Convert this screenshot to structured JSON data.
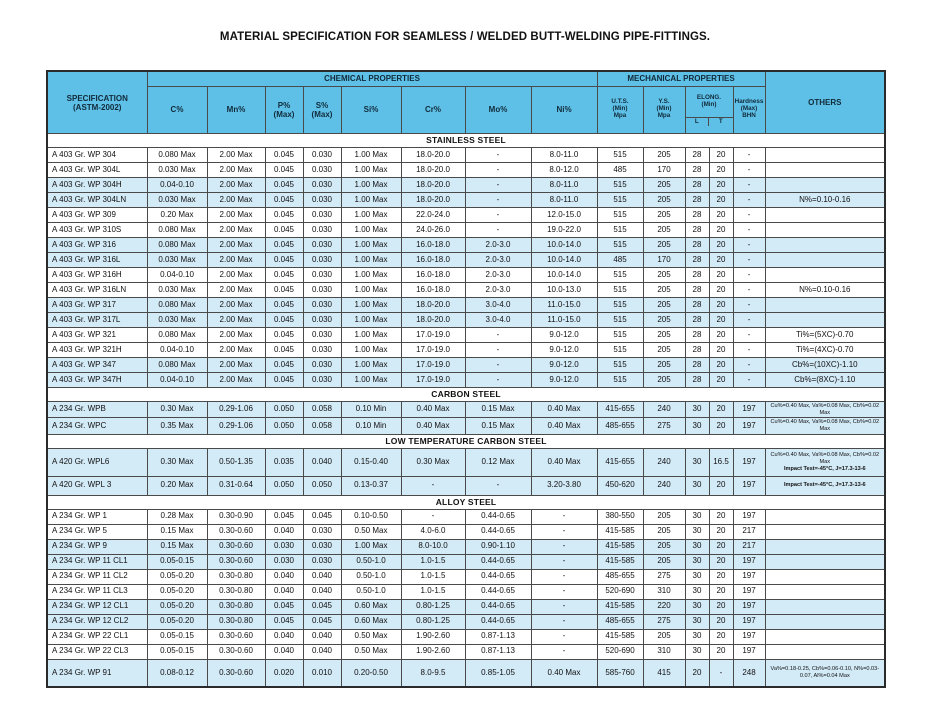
{
  "title": "MATERIAL SPECIFICATION FOR SEAMLESS / WELDED BUTT-WELDING PIPE-FITTINGS.",
  "colors": {
    "header_blue": "#5fc0e7",
    "row_blue": "#d3eaf7",
    "border": "#4a4a4a"
  },
  "header": {
    "spec": "SPECIFICATION\n(ASTM-2002)",
    "chemical": "CHEMICAL PROPERTIES",
    "mechanical": "MECHANICAL PROPERTIES",
    "others": "OTHERS",
    "chem_cols": [
      "C%",
      "Mn%",
      "P%\n(Max)",
      "S%\n(Max)",
      "Si%",
      "Cr%",
      "Mo%",
      "Ni%"
    ],
    "mech_cols": [
      "U.T.S.\n(Min)\nMpa",
      "Y.S.\n(Min)\nMpa",
      "ELONG.\n(Min)",
      "Hardness\n(Max)\nBHN"
    ],
    "elong_sub": [
      "L",
      "T"
    ]
  },
  "sections": [
    {
      "name": "STAINLESS STEEL",
      "rows": [
        {
          "shade": false,
          "cells": [
            "A 403 Gr. WP 304",
            "0.080 Max",
            "2.00 Max",
            "0.045",
            "0.030",
            "1.00 Max",
            "18.0-20.0",
            "-",
            "8.0-11.0",
            "515",
            "205",
            "28",
            "20",
            "-",
            ""
          ]
        },
        {
          "shade": false,
          "cells": [
            "A 403 Gr. WP 304L",
            "0.030 Max",
            "2.00 Max",
            "0.045",
            "0.030",
            "1.00 Max",
            "18.0-20.0",
            "-",
            "8.0-12.0",
            "485",
            "170",
            "28",
            "20",
            "-",
            ""
          ]
        },
        {
          "shade": true,
          "cells": [
            "A 403 Gr. WP 304H",
            "0.04-0.10",
            "2.00 Max",
            "0.045",
            "0.030",
            "1.00 Max",
            "18.0-20.0",
            "-",
            "8.0-11.0",
            "515",
            "205",
            "28",
            "20",
            "-",
            ""
          ]
        },
        {
          "shade": true,
          "cells": [
            "A 403 Gr. WP 304LN",
            "0.030 Max",
            "2.00 Max",
            "0.045",
            "0.030",
            "1.00 Max",
            "18.0-20.0",
            "-",
            "8.0-11.0",
            "515",
            "205",
            "28",
            "20",
            "-",
            "N%=0.10-0.16"
          ]
        },
        {
          "shade": false,
          "cells": [
            "A 403 Gr. WP 309",
            "0.20 Max",
            "2.00 Max",
            "0.045",
            "0.030",
            "1.00 Max",
            "22.0-24.0",
            "-",
            "12.0-15.0",
            "515",
            "205",
            "28",
            "20",
            "-",
            ""
          ]
        },
        {
          "shade": false,
          "cells": [
            "A 403 Gr. WP 310S",
            "0.080 Max",
            "2.00 Max",
            "0.045",
            "0.030",
            "1.00 Max",
            "24.0-26.0",
            "-",
            "19.0-22.0",
            "515",
            "205",
            "28",
            "20",
            "-",
            ""
          ]
        },
        {
          "shade": true,
          "cells": [
            "A 403 Gr. WP 316",
            "0.080 Max",
            "2.00 Max",
            "0.045",
            "0.030",
            "1.00 Max",
            "16.0-18.0",
            "2.0-3.0",
            "10.0-14.0",
            "515",
            "205",
            "28",
            "20",
            "-",
            ""
          ]
        },
        {
          "shade": true,
          "cells": [
            "A 403 Gr. WP 316L",
            "0.030 Max",
            "2.00 Max",
            "0.045",
            "0.030",
            "1.00 Max",
            "16.0-18.0",
            "2.0-3.0",
            "10.0-14.0",
            "485",
            "170",
            "28",
            "20",
            "-",
            ""
          ]
        },
        {
          "shade": false,
          "cells": [
            "A 403 Gr. WP 316H",
            "0.04-0.10",
            "2.00 Max",
            "0.045",
            "0.030",
            "1.00 Max",
            "16.0-18.0",
            "2.0-3.0",
            "10.0-14.0",
            "515",
            "205",
            "28",
            "20",
            "-",
            ""
          ]
        },
        {
          "shade": false,
          "cells": [
            "A 403 Gr. WP 316LN",
            "0.030 Max",
            "2.00 Max",
            "0.045",
            "0.030",
            "1.00 Max",
            "16.0-18.0",
            "2.0-3.0",
            "10.0-13.0",
            "515",
            "205",
            "28",
            "20",
            "-",
            "N%=0.10-0.16"
          ]
        },
        {
          "shade": true,
          "cells": [
            "A 403 Gr. WP 317",
            "0.080 Max",
            "2.00 Max",
            "0.045",
            "0.030",
            "1.00 Max",
            "18.0-20.0",
            "3.0-4.0",
            "11.0-15.0",
            "515",
            "205",
            "28",
            "20",
            "-",
            ""
          ]
        },
        {
          "shade": true,
          "cells": [
            "A 403 Gr. WP 317L",
            "0.030 Max",
            "2.00 Max",
            "0.045",
            "0.030",
            "1.00 Max",
            "18.0-20.0",
            "3.0-4.0",
            "11.0-15.0",
            "515",
            "205",
            "28",
            "20",
            "-",
            ""
          ]
        },
        {
          "shade": false,
          "cells": [
            "A 403 Gr. WP 321",
            "0.080 Max",
            "2.00 Max",
            "0.045",
            "0.030",
            "1.00 Max",
            "17.0-19.0",
            "-",
            "9.0-12.0",
            "515",
            "205",
            "28",
            "20",
            "-",
            "Ti%=(5XC)-0.70"
          ]
        },
        {
          "shade": false,
          "cells": [
            "A 403 Gr. WP 321H",
            "0.04-0.10",
            "2.00 Max",
            "0.045",
            "0.030",
            "1.00 Max",
            "17.0-19.0",
            "-",
            "9.0-12.0",
            "515",
            "205",
            "28",
            "20",
            "-",
            "Ti%=(4XC)-0.70"
          ]
        },
        {
          "shade": true,
          "cells": [
            "A 403 Gr. WP 347",
            "0.080 Max",
            "2.00 Max",
            "0.045",
            "0.030",
            "1.00 Max",
            "17.0-19.0",
            "-",
            "9.0-12.0",
            "515",
            "205",
            "28",
            "20",
            "-",
            "Cb%=(10XC)-1.10"
          ]
        },
        {
          "shade": true,
          "cells": [
            "A 403 Gr. WP 347H",
            "0.04-0.10",
            "2.00 Max",
            "0.045",
            "0.030",
            "1.00 Max",
            "17.0-19.0",
            "-",
            "9.0-12.0",
            "515",
            "205",
            "28",
            "20",
            "-",
            "Cb%=(8XC)-1.10"
          ]
        }
      ]
    },
    {
      "name": "CARBON STEEL",
      "rows": [
        {
          "shade": true,
          "cells": [
            "A 234 Gr. WPB",
            "0.30 Max",
            "0.29-1.06",
            "0.050",
            "0.058",
            "0.10 Min",
            "0.40 Max",
            "0.15 Max",
            "0.40 Max",
            "415-655",
            "240",
            "30",
            "20",
            "197",
            "Cu%=0.40 Max, Va%=0.08 Max, Cb%=0.02 Max"
          ]
        },
        {
          "shade": true,
          "cells": [
            "A 234 Gr. WPC",
            "0.35 Max",
            "0.29-1.06",
            "0.050",
            "0.058",
            "0.10 Min",
            "0.40 Max",
            "0.15 Max",
            "0.40 Max",
            "485-655",
            "275",
            "30",
            "20",
            "197",
            "Cu%=0.40 Max, Va%=0.08 Max, Cb%=0.02 Max"
          ]
        }
      ]
    },
    {
      "name": "LOW TEMPERATURE CARBON STEEL",
      "rows": [
        {
          "shade": true,
          "tall": true,
          "cells": [
            "A 420 Gr. WPL6",
            "0.30 Max",
            "0.50-1.35",
            "0.035",
            "0.040",
            "0.15-0.40",
            "0.30 Max",
            "0.12 Max",
            "0.40 Max",
            "415-655",
            "240",
            "30",
            "16.5",
            "197",
            "Cu%=0.40 Max, Va%=0.08 Max, Cb%=0.02 Max\nImpact Test=-45°C, J=17.3-13-6"
          ]
        },
        {
          "shade": true,
          "semiTall": true,
          "cells": [
            "A 420 Gr. WPL 3",
            "0.20 Max",
            "0.31-0.64",
            "0.050",
            "0.050",
            "0.13-0.37",
            "-",
            "-",
            "3.20-3.80",
            "450-620",
            "240",
            "30",
            "20",
            "197",
            "Impact Test=-45°C, J=17.3-13-6"
          ]
        }
      ]
    },
    {
      "name": "ALLOY STEEL",
      "rows": [
        {
          "shade": false,
          "cells": [
            "A 234 Gr. WP 1",
            "0.28 Max",
            "0.30-0.90",
            "0.045",
            "0.045",
            "0.10-0.50",
            "-",
            "0.44-0.65",
            "-",
            "380-550",
            "205",
            "30",
            "20",
            "197",
            ""
          ]
        },
        {
          "shade": false,
          "cells": [
            "A 234 Gr. WP 5",
            "0.15 Max",
            "0.30-0.60",
            "0.040",
            "0.030",
            "0.50 Max",
            "4.0-6.0",
            "0.44-0.65",
            "-",
            "415-585",
            "205",
            "30",
            "20",
            "217",
            ""
          ]
        },
        {
          "shade": true,
          "cells": [
            "A 234 Gr. WP 9",
            "0.15 Max",
            "0.30-0.60",
            "0.030",
            "0.030",
            "1.00 Max",
            "8.0-10.0",
            "0.90-1.10",
            "-",
            "415-585",
            "205",
            "30",
            "20",
            "217",
            ""
          ]
        },
        {
          "shade": true,
          "cells": [
            "A 234 Gr. WP 11 CL1",
            "0.05-0.15",
            "0.30-0.60",
            "0.030",
            "0.030",
            "0.50-1.0",
            "1.0-1.5",
            "0.44-0.65",
            "-",
            "415-585",
            "205",
            "30",
            "20",
            "197",
            ""
          ]
        },
        {
          "shade": false,
          "cells": [
            "A 234 Gr. WP 11 CL2",
            "0.05-0.20",
            "0.30-0.80",
            "0.040",
            "0.040",
            "0.50-1.0",
            "1.0-1.5",
            "0.44-0.65",
            "-",
            "485-655",
            "275",
            "30",
            "20",
            "197",
            ""
          ]
        },
        {
          "shade": false,
          "cells": [
            "A 234 Gr. WP 11 CL3",
            "0.05-0.20",
            "0.30-0.80",
            "0.040",
            "0.040",
            "0.50-1.0",
            "1.0-1.5",
            "0.44-0.65",
            "-",
            "520-690",
            "310",
            "30",
            "20",
            "197",
            ""
          ]
        },
        {
          "shade": true,
          "cells": [
            "A 234 Gr. WP 12 CL1",
            "0.05-0.20",
            "0.30-0.80",
            "0.045",
            "0.045",
            "0.60 Max",
            "0.80-1.25",
            "0.44-0.65",
            "-",
            "415-585",
            "220",
            "30",
            "20",
            "197",
            ""
          ]
        },
        {
          "shade": true,
          "cells": [
            "A 234 Gr. WP 12 CL2",
            "0.05-0.20",
            "0.30-0.80",
            "0.045",
            "0.045",
            "0.60 Max",
            "0.80-1.25",
            "0.44-0.65",
            "-",
            "485-655",
            "275",
            "30",
            "20",
            "197",
            ""
          ]
        },
        {
          "shade": false,
          "cells": [
            "A 234 Gr. WP 22 CL1",
            "0.05-0.15",
            "0.30-0.60",
            "0.040",
            "0.040",
            "0.50 Max",
            "1.90-2.60",
            "0.87-1.13",
            "-",
            "415-585",
            "205",
            "30",
            "20",
            "197",
            ""
          ]
        },
        {
          "shade": false,
          "cells": [
            "A 234 Gr. WP 22 CL3",
            "0.05-0.15",
            "0.30-0.60",
            "0.040",
            "0.040",
            "0.50 Max",
            "1.90-2.60",
            "0.87-1.13",
            "-",
            "520-690",
            "310",
            "30",
            "20",
            "197",
            ""
          ]
        },
        {
          "shade": true,
          "tall": true,
          "cells": [
            "A 234 Gr. WP 91",
            "0.08-0.12",
            "0.30-0.60",
            "0.020",
            "0.010",
            "0.20-0.50",
            "8.0-9.5",
            "0.85-1.05",
            "0.40 Max",
            "585-760",
            "415",
            "20",
            "-",
            "248",
            "Va%=0.18-0.25, Cb%=0.06-0.10, N%=0.03-0.07, Al%=0.04 Max"
          ]
        }
      ]
    }
  ]
}
